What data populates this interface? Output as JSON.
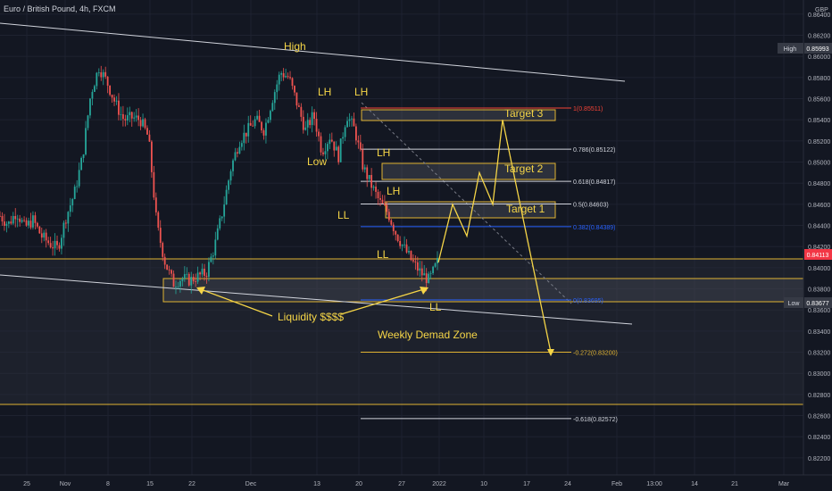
{
  "header": {
    "symbol_title": "Euro / British Pound, 4h, FXCM"
  },
  "currency_label": "GBP",
  "colors": {
    "background": "#131722",
    "grid": "#1e2230",
    "up": "#26a69a",
    "down": "#ef5350",
    "annotation": "#f5d547",
    "zone_border": "#e0b332",
    "white_line": "#d1d4dc",
    "fib_red": "#f44336",
    "fib_blue": "#2962ff",
    "price_tag_red": "#f23645"
  },
  "price_axis": {
    "ticks": [
      "0.86400",
      "0.86200",
      "0.86000",
      "0.85800",
      "0.85600",
      "0.85400",
      "0.85200",
      "0.85000",
      "0.84800",
      "0.84600",
      "0.84400",
      "0.84200",
      "0.84000",
      "0.83800",
      "0.83600",
      "0.83400",
      "0.83200",
      "0.83000",
      "0.82800",
      "0.82600",
      "0.82400",
      "0.82200"
    ],
    "high_label": "High",
    "high_value": "0.85993",
    "low_label": "Low",
    "low_value": "0.83677",
    "last_price": "0.84113"
  },
  "time_axis": {
    "labels": [
      "25",
      "Nov",
      "8",
      "15",
      "22",
      "Dec",
      "13",
      "20",
      "27",
      "2022",
      "10",
      "17",
      "24",
      "Feb",
      "13:00",
      "14",
      "21",
      "Mar"
    ]
  },
  "annotations": {
    "high": "High",
    "lh1": "LH",
    "lh2": "LH",
    "lh3": "LH",
    "lh4": "LH",
    "low": "Low",
    "ll1": "LL",
    "ll2": "LL",
    "ll3": "LL",
    "liquidity": "Liquidity $$$$",
    "zone": "Weekly Demad Zone",
    "target1": "Target 1",
    "target2": "Target 2",
    "target3": "Target 3"
  },
  "fib_levels": [
    {
      "label": "1(0.85511)",
      "price": 0.85511,
      "color": "#f44336"
    },
    {
      "label": "0.786(0.85122)",
      "price": 0.85122,
      "color": "#d1d4dc"
    },
    {
      "label": "0.618(0.84817)",
      "price": 0.84817,
      "color": "#d1d4dc"
    },
    {
      "label": "0.5(0.84603)",
      "price": 0.84603,
      "color": "#d1d4dc"
    },
    {
      "label": "0.382(0.84389)",
      "price": 0.84389,
      "color": "#2962ff"
    },
    {
      "label": "0(0.83695)",
      "price": 0.83695,
      "color": "#2962ff"
    },
    {
      "label": "-0.272(0.83200)",
      "price": 0.832,
      "color": "#e0b332"
    },
    {
      "label": "-0.618(0.82572)",
      "price": 0.82572,
      "color": "#d1d4dc"
    }
  ],
  "chart_data": {
    "type": "candlestick",
    "title": "Euro / British Pound, 4h, FXCM",
    "ylim": [
      0.8214,
      0.865
    ],
    "price_path": [
      [
        0,
        0.8449
      ],
      [
        1,
        0.8441
      ],
      [
        2,
        0.8453
      ],
      [
        3,
        0.8438
      ],
      [
        4,
        0.8445
      ],
      [
        5,
        0.843
      ],
      [
        6,
        0.8423
      ],
      [
        7,
        0.8418
      ],
      [
        8,
        0.8448
      ],
      [
        9,
        0.847
      ],
      [
        10,
        0.8505
      ],
      [
        11,
        0.8565
      ],
      [
        12,
        0.859
      ],
      [
        13,
        0.8575
      ],
      [
        14,
        0.8555
      ],
      [
        15,
        0.854
      ],
      [
        16,
        0.8542
      ],
      [
        17,
        0.854
      ],
      [
        18,
        0.8523
      ],
      [
        19,
        0.844
      ],
      [
        20,
        0.8405
      ],
      [
        21,
        0.8385
      ],
      [
        22,
        0.839
      ],
      [
        23,
        0.8388
      ],
      [
        24,
        0.8392
      ],
      [
        25,
        0.8395
      ],
      [
        26,
        0.842
      ],
      [
        27,
        0.8455
      ],
      [
        28,
        0.8495
      ],
      [
        29,
        0.852
      ],
      [
        30,
        0.853
      ],
      [
        31,
        0.854
      ],
      [
        32,
        0.853
      ],
      [
        33,
        0.856
      ],
      [
        34,
        0.8585
      ],
      [
        35,
        0.858
      ],
      [
        36,
        0.8555
      ],
      [
        37,
        0.853
      ],
      [
        38,
        0.8545
      ],
      [
        39,
        0.851
      ],
      [
        40,
        0.8525
      ],
      [
        41,
        0.8505
      ],
      [
        42,
        0.8545
      ],
      [
        43,
        0.853
      ],
      [
        44,
        0.8495
      ],
      [
        45,
        0.8478
      ],
      [
        46,
        0.8462
      ],
      [
        47,
        0.8452
      ],
      [
        48,
        0.8432
      ],
      [
        49,
        0.8418
      ],
      [
        50,
        0.8405
      ],
      [
        51,
        0.8395
      ],
      [
        52,
        0.8388
      ],
      [
        53,
        0.8405
      ]
    ],
    "projected_path_price": [
      0.8405,
      0.846,
      0.843,
      0.849,
      0.846,
      0.854,
      0.832
    ]
  }
}
